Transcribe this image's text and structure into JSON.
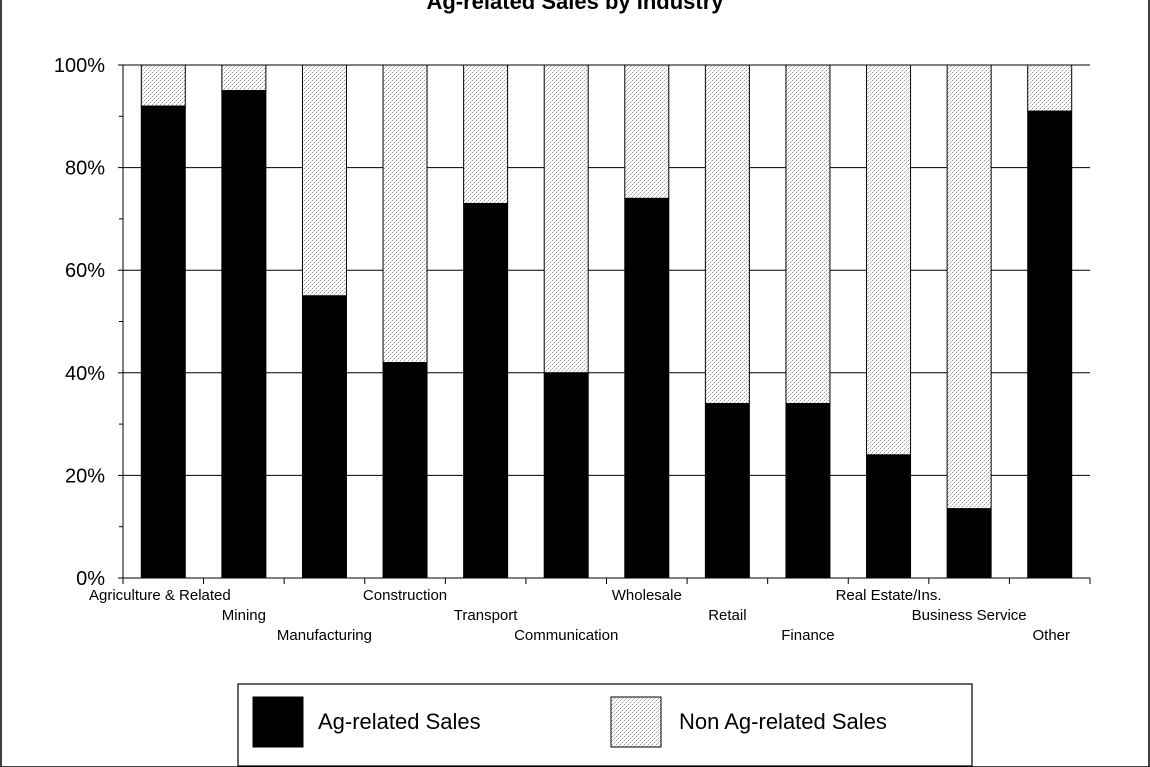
{
  "chart_data": {
    "type": "bar",
    "stacked": true,
    "title": "Ag-related Sales by Industry",
    "categories": [
      "Agriculture & Related",
      "Mining",
      "Manufacturing",
      "Construction",
      "Transport",
      "Communication",
      "Wholesale",
      "Retail",
      "Finance",
      "Real Estate/Ins.",
      "Business Service",
      "Other"
    ],
    "series": [
      {
        "name": "Ag-related Sales",
        "values": [
          92,
          95,
          55,
          42,
          73,
          40,
          74,
          34,
          34,
          24,
          13.5,
          91
        ],
        "color": "#000000",
        "pattern": "solid"
      },
      {
        "name": "Non Ag-related Sales",
        "values": [
          8,
          5,
          45,
          58,
          27,
          60,
          26,
          66,
          66,
          76,
          86.5,
          9
        ],
        "color": "#e6e6e6",
        "pattern": "stipple"
      }
    ],
    "ylim": [
      0,
      100
    ],
    "yticks": [
      "0%",
      "20%",
      "40%",
      "60%",
      "80%",
      "100%"
    ],
    "grid": true,
    "legend_position": "bottom"
  }
}
